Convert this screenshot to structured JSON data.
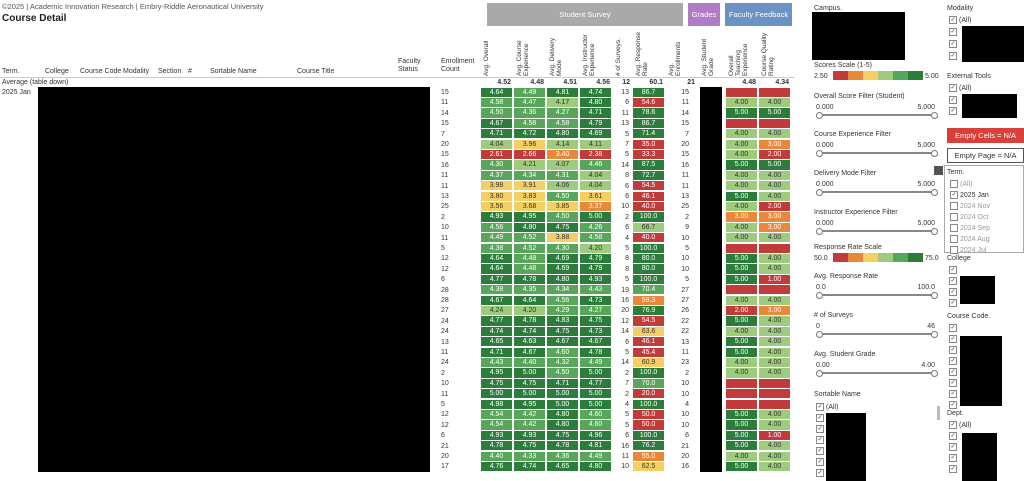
{
  "header": {
    "copyright": "©2025 | Academic Innovation Research | Embry-Riddle Aeronautical University",
    "title": "Course Detail"
  },
  "tabs": [
    "Student Survey",
    "Grades",
    "Faculty Feedback"
  ],
  "table": {
    "columns": [
      "Term.",
      "College",
      "Course Code",
      "Modality",
      "Section",
      "#",
      "Sortable Name",
      "Course Title",
      "Faculty Status",
      "Enrollment Count"
    ],
    "metric_columns": [
      "Avg. Overall",
      "Avg. Course Experience",
      "Avg. Delivery Mode",
      "Avg. Instructor Experience",
      "# of Surveys.",
      "Avg. Response Rate",
      "Avg. Enrollments",
      "Avg. Student Grade",
      "Overall Teaching Experience",
      "Course Quality Rating"
    ],
    "average_label": "Average (table down)",
    "averages": [
      "4.52",
      "4.48",
      "4.51",
      "4.56",
      "12",
      "60.1",
      "21",
      null,
      "4.48",
      "4.34"
    ],
    "term": "2025 Jan",
    "rows": [
      [
        "15",
        "4.64",
        "4.49",
        "4.81",
        "4.74",
        "13",
        "86.7",
        "15",
        null,
        null
      ],
      [
        "11",
        "4.58",
        "4.47",
        "4.17",
        "4.80",
        "6",
        "54.6",
        "11",
        "4.00",
        "4.00"
      ],
      [
        "14",
        "4.50",
        "4.36",
        "4.27",
        "4.71",
        "11",
        "78.6",
        "14",
        "5.00",
        "5.00"
      ],
      [
        "15",
        "4.67",
        "4.58",
        "4.58",
        "4.79",
        "13",
        "86.7",
        "15",
        null,
        null
      ],
      [
        "7",
        "4.71",
        "4.72",
        "4.80",
        "4.69",
        "5",
        "71.4",
        "7",
        "4.00",
        "4.00"
      ],
      [
        "20",
        "4.04",
        "3.96",
        "4.14",
        "4.11",
        "7",
        "35.0",
        "20",
        "4.00",
        "3.00"
      ],
      [
        "15",
        "2.61",
        "2.66",
        "3.40",
        "2.38",
        "5",
        "33.3",
        "15",
        "4.00",
        "2.00"
      ],
      [
        "16",
        "4.30",
        "4.21",
        "4.07",
        "4.46",
        "14",
        "87.5",
        "16",
        "5.00",
        "5.00"
      ],
      [
        "11",
        "4.37",
        "4.34",
        "4.31",
        "4.04",
        "8",
        "72.7",
        "11",
        "4.00",
        "4.00"
      ],
      [
        "11",
        "3.98",
        "3.91",
        "4.06",
        "4.04",
        "6",
        "54.5",
        "11",
        "4.00",
        "4.00"
      ],
      [
        "13",
        "3.80",
        "3.83",
        "4.50",
        "3.61",
        "6",
        "46.1",
        "13",
        "5.00",
        "4.00"
      ],
      [
        "25",
        "3.56",
        "3.68",
        "3.85",
        "3.37",
        "10",
        "40.0",
        "25",
        "4.00",
        "2.00"
      ],
      [
        "2",
        "4.93",
        "4.95",
        "4.50",
        "5.00",
        "2",
        "100.0",
        "2",
        "3.00",
        "3.00"
      ],
      [
        "10",
        "4.56",
        "4.80",
        "4.75",
        "4.26",
        "6",
        "66.7",
        "9",
        "4.00",
        "3.00"
      ],
      [
        "11",
        "4.49",
        "4.52",
        "3.88",
        "4.58",
        "4",
        "40.0",
        "10",
        "4.00",
        "4.00"
      ],
      [
        "5",
        "4.38",
        "4.52",
        "4.30",
        "4.20",
        "5",
        "100.0",
        "5",
        null,
        null
      ],
      [
        "12",
        "4.64",
        "4.48",
        "4.69",
        "4.79",
        "8",
        "80.0",
        "10",
        "5.00",
        "4.00"
      ],
      [
        "12",
        "4.64",
        "4.48",
        "4.69",
        "4.79",
        "8",
        "80.0",
        "10",
        "5.00",
        "4.00"
      ],
      [
        "6",
        "4.77",
        "4.78",
        "4.80",
        "4.93",
        "5",
        "100.0",
        "5",
        "5.00",
        "1.00"
      ],
      [
        "28",
        "4.38",
        "4.35",
        "4.34",
        "4.43",
        "19",
        "70.4",
        "27",
        null,
        null
      ],
      [
        "28",
        "4.67",
        "4.64",
        "4.56",
        "4.73",
        "16",
        "59.3",
        "27",
        "4.00",
        "4.00"
      ],
      [
        "27",
        "4.24",
        "4.20",
        "4.29",
        "4.27",
        "20",
        "76.9",
        "26",
        "2.00",
        "3.00"
      ],
      [
        "24",
        "4.77",
        "4.78",
        "4.83",
        "4.75",
        "12",
        "54.5",
        "22",
        "5.00",
        "4.00"
      ],
      [
        "24",
        "4.74",
        "4.74",
        "4.75",
        "4.73",
        "14",
        "63.6",
        "22",
        "4.00",
        "4.00"
      ],
      [
        "13",
        "4.65",
        "4.63",
        "4.67",
        "4.67",
        "6",
        "46.1",
        "13",
        "5.00",
        "4.00"
      ],
      [
        "11",
        "4.71",
        "4.67",
        "4.60",
        "4.78",
        "5",
        "45.4",
        "11",
        "5.00",
        "4.00"
      ],
      [
        "24",
        "4.43",
        "4.40",
        "4.32",
        "4.49",
        "14",
        "60.9",
        "23",
        "4.00",
        "4.00"
      ],
      [
        "2",
        "4.95",
        "5.00",
        "4.50",
        "5.00",
        "2",
        "100.0",
        "2",
        "4.00",
        "4.00"
      ],
      [
        "10",
        "4.75",
        "4.75",
        "4.71",
        "4.77",
        "7",
        "70.0",
        "10",
        null,
        null
      ],
      [
        "11",
        "5.00",
        "5.00",
        "5.00",
        "5.00",
        "2",
        "20.0",
        "10",
        null,
        null
      ],
      [
        "5",
        "4.98",
        "4.95",
        "5.00",
        "5.00",
        "4",
        "100.0",
        "4",
        null,
        null
      ],
      [
        "12",
        "4.54",
        "4.42",
        "4.80",
        "4.60",
        "5",
        "50.0",
        "10",
        "5.00",
        "4.00"
      ],
      [
        "12",
        "4.54",
        "4.42",
        "4.80",
        "4.60",
        "5",
        "50.0",
        "10",
        "5.00",
        "4.00"
      ],
      [
        "6",
        "4.93",
        "4.93",
        "4.75",
        "4.96",
        "6",
        "100.0",
        "6",
        "5.00",
        "1.00"
      ],
      [
        "21",
        "4.78",
        "4.75",
        "4.78",
        "4.81",
        "16",
        "76.2",
        "21",
        "5.00",
        "4.00"
      ],
      [
        "20",
        "4.40",
        "4.33",
        "4.36",
        "4.49",
        "11",
        "55.0",
        "20",
        "4.00",
        "4.00"
      ],
      [
        "17",
        "4.76",
        "4.74",
        "4.65",
        "4.80",
        "10",
        "62.5",
        "16",
        "5.00",
        "4.00"
      ]
    ]
  },
  "filters": {
    "campus": "Campus.",
    "scores_scale": {
      "title": "Scores Scale (1-5)",
      "min": "2.50",
      "max": "5.00"
    },
    "sliders_a": [
      {
        "title": "Overall Score Filter (Student)",
        "min": "0.000",
        "max": "5.000"
      },
      {
        "title": "Course Experience Filter",
        "min": "0.000",
        "max": "5.000"
      },
      {
        "title": "Delivery Mode Filter",
        "min": "0.000",
        "max": "5.000"
      },
      {
        "title": "Instructor Experience Filter",
        "min": "0.000",
        "max": "5.000"
      }
    ],
    "response_scale": {
      "title": "Response Rate Scale",
      "min": "50.0",
      "max": "75.0"
    },
    "sliders_b": [
      {
        "title": "Avg. Response Rate",
        "min": "0.0",
        "max": "100.0"
      },
      {
        "title": "# of Surveys",
        "min": "0",
        "max": "46"
      },
      {
        "title": "Avg. Student Grade",
        "min": "0.00",
        "max": "4.00"
      }
    ],
    "sortable_name": {
      "title": "Sortable Name",
      "all": "(All)"
    },
    "modality": {
      "title": "Modality",
      "all": "(All)"
    },
    "external_tools": {
      "title": "External Tools",
      "all": "(All)"
    },
    "buttons": [
      "Empty Cells = N/A",
      "Empty Page = N/A"
    ],
    "term": {
      "title": "Term.",
      "options": [
        "(All)",
        "2025 Jan",
        "2024 Nov",
        "2024 Oct",
        "2024 Sep",
        "2024 Aug",
        "2024 Jul"
      ]
    },
    "college": {
      "title": "College"
    },
    "course_code": {
      "title": "Course Code."
    },
    "dept": {
      "title": "Dept.",
      "all": "(All)"
    }
  }
}
